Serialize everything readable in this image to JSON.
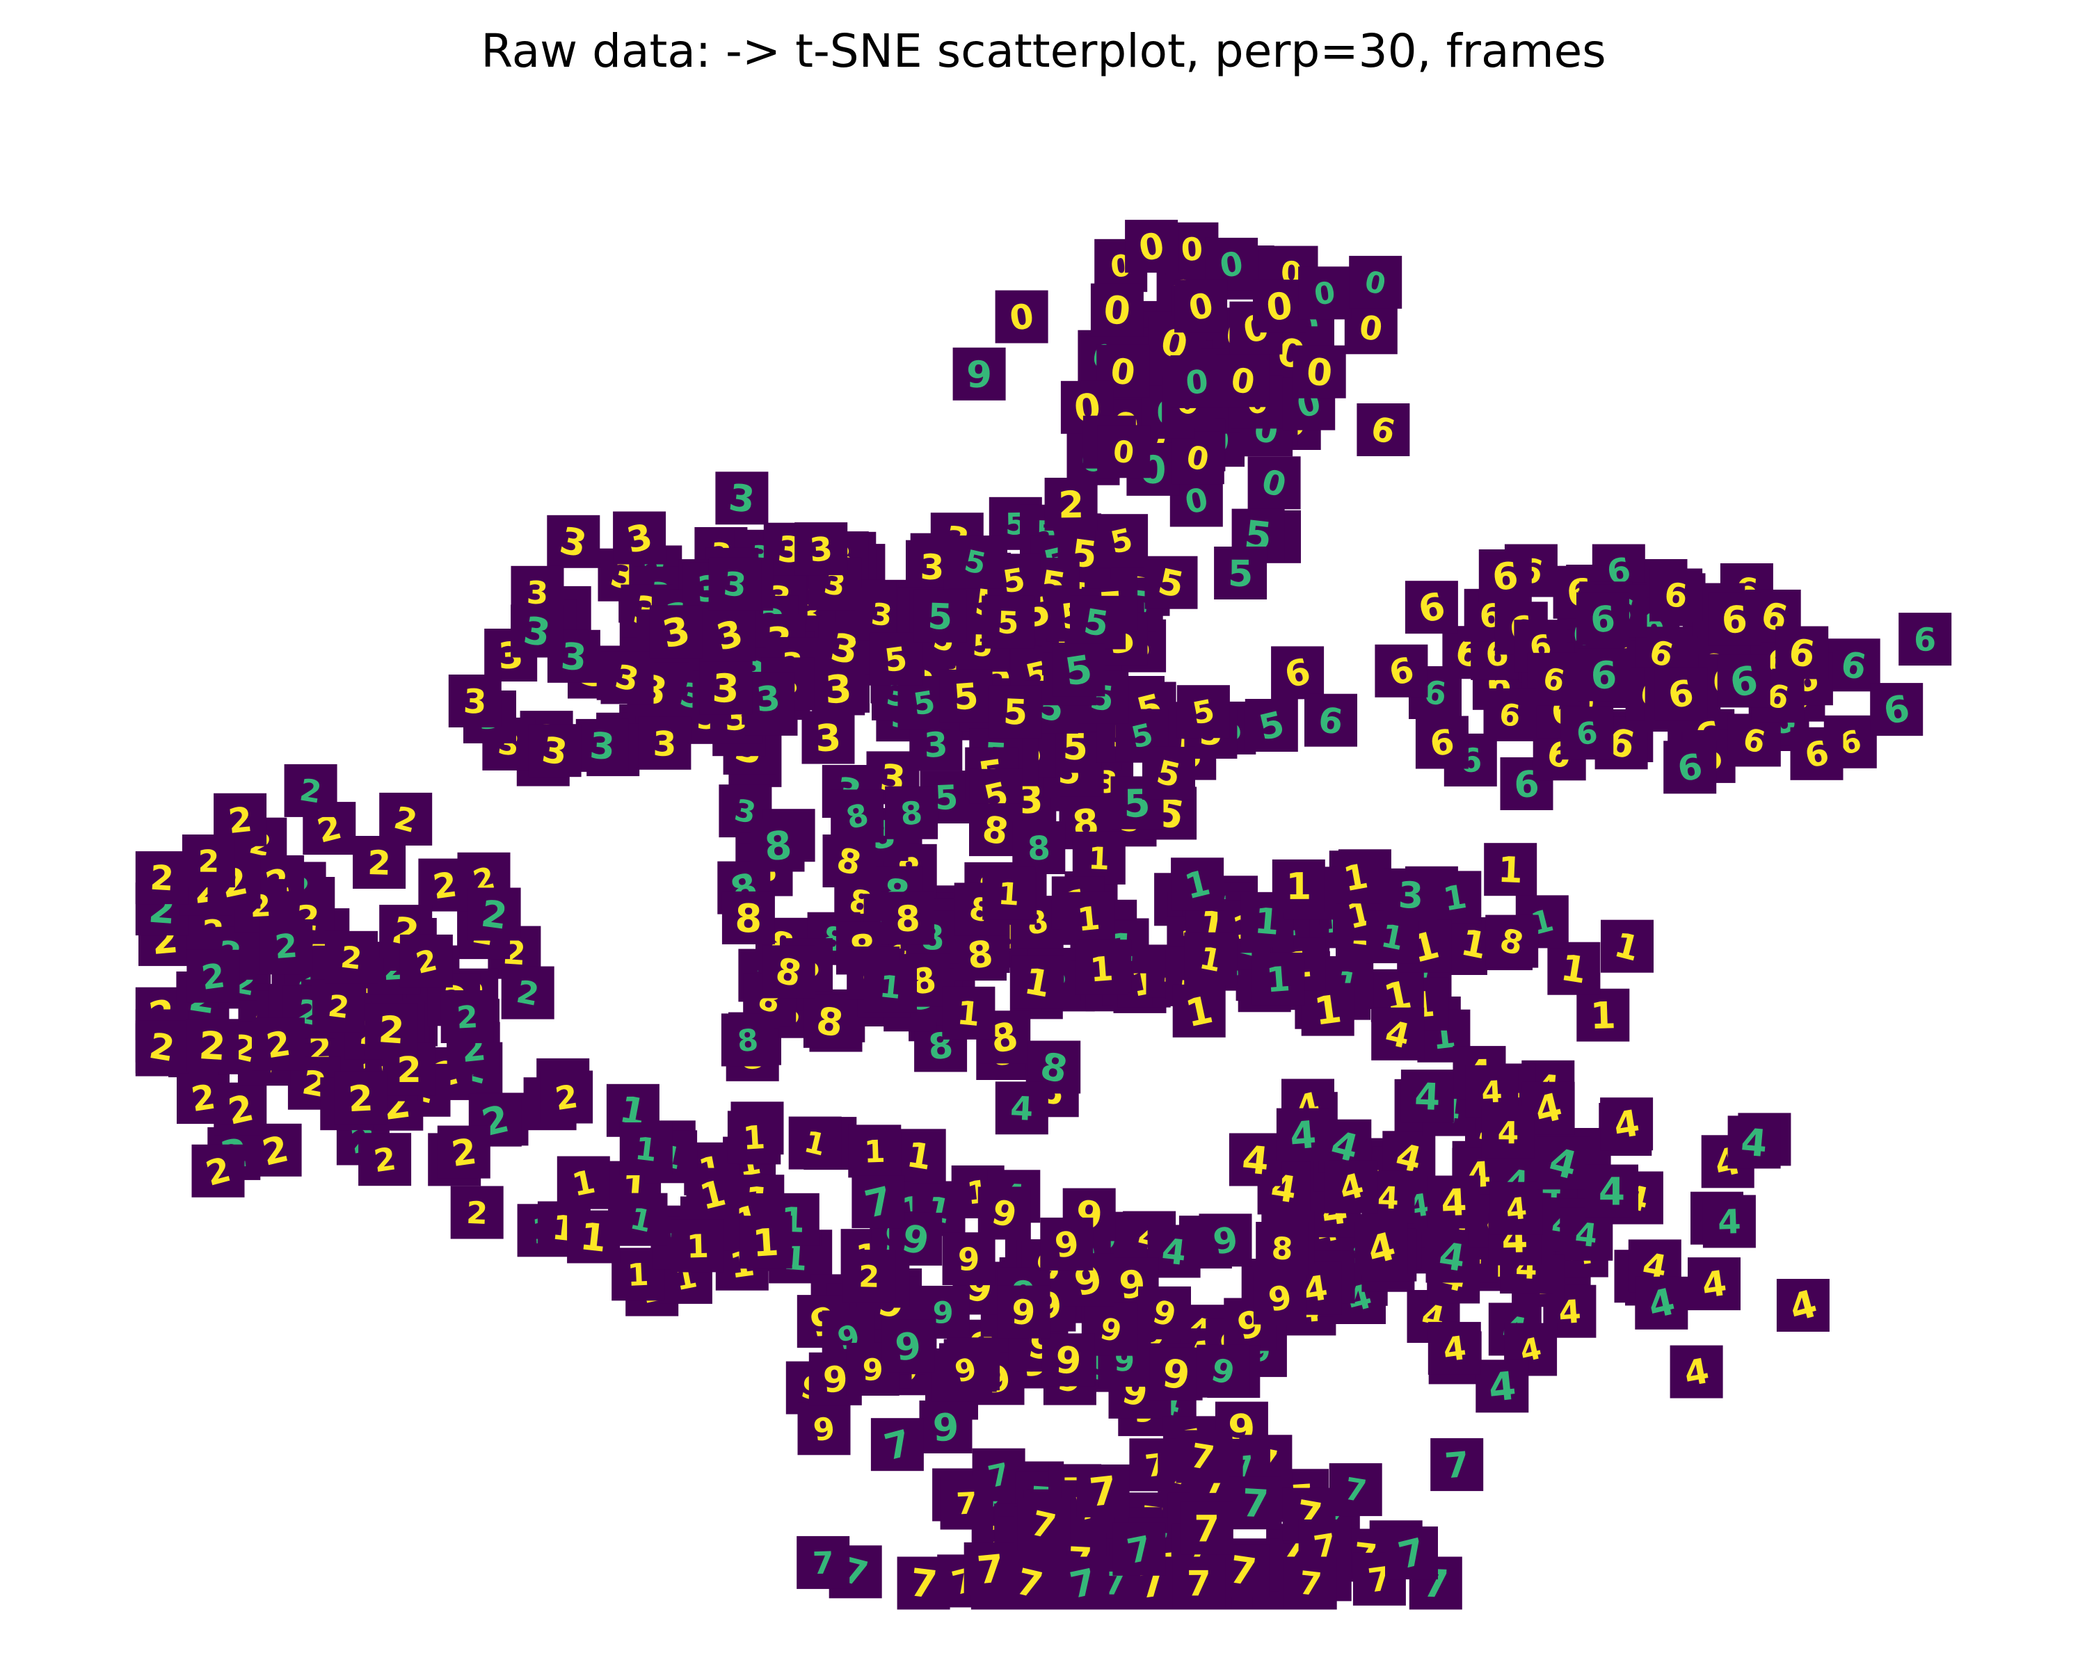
{
  "chart_data": {
    "type": "scatter",
    "title": "Raw data: -> t-SNE scatterplot, perp=30, frames",
    "xlabel": "",
    "ylabel": "",
    "axes_visible": false,
    "grid": false,
    "xlim": [
      -50,
      50
    ],
    "ylim": [
      -40,
      40
    ],
    "marker": "28x28 digit image thumbnail (viridis colormap)",
    "colors": {
      "thumbnail_background": "#440154",
      "digit_stroke_bright": "#fde725",
      "digit_stroke_mid": "#35b779"
    },
    "clusters": [
      {
        "label": "0",
        "center": [
          9,
          27
        ],
        "spread": [
          7,
          6
        ],
        "count": 75
      },
      {
        "label": "6",
        "center": [
          33,
          11
        ],
        "spread": [
          12,
          5
        ],
        "count": 85
      },
      {
        "label": "3",
        "center": [
          -16,
          12
        ],
        "spread": [
          13,
          7
        ],
        "count": 130
      },
      {
        "label": "5",
        "center": [
          1,
          12
        ],
        "spread": [
          9,
          7
        ],
        "count": 95
      },
      {
        "label": "2",
        "center": [
          -38,
          -7
        ],
        "spread": [
          10,
          8
        ],
        "count": 105
      },
      {
        "label": "8",
        "center": [
          -7,
          -3
        ],
        "spread": [
          9,
          6
        ],
        "count": 80
      },
      {
        "label": "1",
        "center": [
          13,
          -4
        ],
        "spread": [
          14,
          4
        ],
        "count": 80
      },
      {
        "label": "1",
        "center": [
          -15,
          -17
        ],
        "spread": [
          10,
          4
        ],
        "count": 45
      },
      {
        "label": "4",
        "center": [
          22,
          -19
        ],
        "spread": [
          17,
          7
        ],
        "count": 110
      },
      {
        "label": "9",
        "center": [
          0,
          -24
        ],
        "spread": [
          12,
          6
        ],
        "count": 75
      },
      {
        "label": "7",
        "center": [
          6,
          -36
        ],
        "spread": [
          13,
          5
        ],
        "count": 95
      }
    ],
    "outliers": [
      {
        "label": "9",
        "x": -3.5,
        "y": 27
      },
      {
        "label": "2",
        "x": 1.5,
        "y": 20
      },
      {
        "label": "6",
        "x": 18.5,
        "y": 24
      },
      {
        "label": "3",
        "x": 20,
        "y": -1
      },
      {
        "label": "8",
        "x": 25.5,
        "y": -3.5
      },
      {
        "label": "2",
        "x": -9.5,
        "y": -21.5
      },
      {
        "label": "7",
        "x": -9,
        "y": -17.5
      },
      {
        "label": "8",
        "x": 13,
        "y": -20
      }
    ]
  }
}
